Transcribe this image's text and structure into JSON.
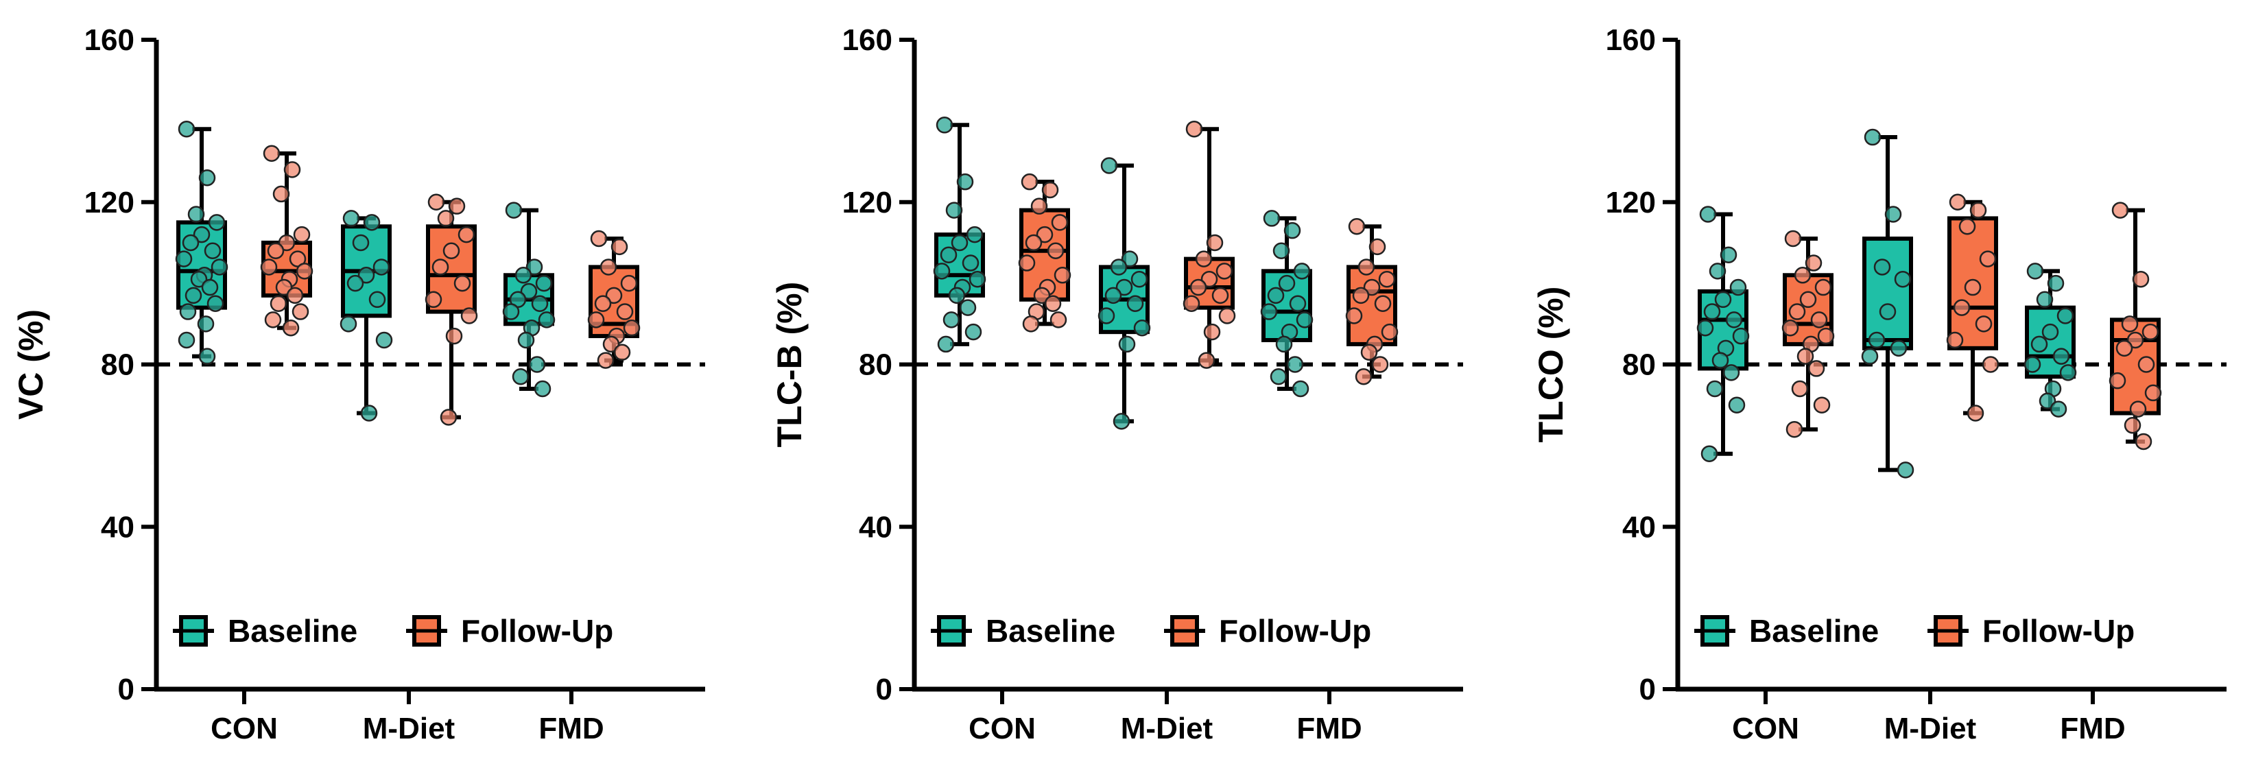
{
  "colors": {
    "baseline": "#1fbfa6",
    "followup": "#f57348",
    "baseline_dot": "#2aa594",
    "followup_dot": "#f08a70"
  },
  "chart_data": [
    {
      "type": "box",
      "ylabel": "VC (%)",
      "ylim": [
        0,
        160
      ],
      "yticks": [
        "0",
        "40",
        "80",
        "120",
        "160"
      ],
      "reference_line": 80,
      "categories": [
        "CON",
        "M-Diet",
        "FMD"
      ],
      "legend": [
        "Baseline",
        "Follow-Up"
      ],
      "series": [
        {
          "name": "Baseline",
          "boxes": [
            {
              "min": 82,
              "q1": 94,
              "median": 103,
              "q3": 115,
              "max": 138,
              "points": [
                138,
                126,
                117,
                115,
                112,
                110,
                108,
                106,
                104,
                102,
                101,
                99,
                97,
                95,
                93,
                90,
                86,
                82
              ]
            },
            {
              "min": 68,
              "q1": 92,
              "median": 103,
              "q3": 114,
              "max": 116,
              "points": [
                116,
                115,
                110,
                104,
                102,
                100,
                96,
                90,
                86,
                68
              ]
            },
            {
              "min": 74,
              "q1": 90,
              "median": 96,
              "q3": 102,
              "max": 118,
              "points": [
                118,
                104,
                102,
                100,
                98,
                96,
                95,
                93,
                91,
                89,
                86,
                80,
                77,
                74
              ]
            }
          ]
        },
        {
          "name": "Follow-Up",
          "boxes": [
            {
              "min": 89,
              "q1": 97,
              "median": 103,
              "q3": 110,
              "max": 132,
              "points": [
                132,
                128,
                122,
                112,
                110,
                108,
                106,
                104,
                103,
                101,
                99,
                97,
                95,
                93,
                91,
                89
              ]
            },
            {
              "min": 67,
              "q1": 93,
              "median": 102,
              "q3": 114,
              "max": 120,
              "points": [
                120,
                119,
                116,
                112,
                108,
                104,
                100,
                96,
                92,
                87,
                67
              ]
            },
            {
              "min": 81,
              "q1": 87,
              "median": 90,
              "q3": 104,
              "max": 111,
              "points": [
                111,
                109,
                104,
                100,
                97,
                95,
                93,
                91,
                89,
                87,
                85,
                83,
                81
              ]
            }
          ]
        }
      ]
    },
    {
      "type": "box",
      "ylabel": "TLC-B (%)",
      "ylim": [
        0,
        160
      ],
      "yticks": [
        "0",
        "40",
        "80",
        "120",
        "160"
      ],
      "reference_line": 80,
      "categories": [
        "CON",
        "M-Diet",
        "FMD"
      ],
      "legend": [
        "Baseline",
        "Follow-Up"
      ],
      "series": [
        {
          "name": "Baseline",
          "boxes": [
            {
              "min": 85,
              "q1": 97,
              "median": 102,
              "q3": 112,
              "max": 139,
              "points": [
                139,
                125,
                118,
                112,
                110,
                107,
                105,
                103,
                101,
                99,
                97,
                94,
                91,
                88,
                85
              ]
            },
            {
              "min": 66,
              "q1": 88,
              "median": 96,
              "q3": 104,
              "max": 129,
              "points": [
                129,
                106,
                104,
                101,
                99,
                97,
                95,
                92,
                89,
                85,
                66
              ]
            },
            {
              "min": 74,
              "q1": 86,
              "median": 93,
              "q3": 103,
              "max": 116,
              "points": [
                116,
                113,
                108,
                103,
                100,
                97,
                95,
                93,
                91,
                88,
                85,
                80,
                77,
                74
              ]
            }
          ]
        },
        {
          "name": "Follow-Up",
          "boxes": [
            {
              "min": 90,
              "q1": 96,
              "median": 108,
              "q3": 118,
              "max": 125,
              "points": [
                125,
                123,
                119,
                115,
                112,
                110,
                108,
                105,
                102,
                99,
                97,
                95,
                93,
                91,
                90
              ]
            },
            {
              "min": 81,
              "q1": 94,
              "median": 99,
              "q3": 106,
              "max": 138,
              "points": [
                138,
                110,
                106,
                103,
                101,
                99,
                97,
                95,
                92,
                88,
                81
              ]
            },
            {
              "min": 77,
              "q1": 85,
              "median": 98,
              "q3": 104,
              "max": 114,
              "points": [
                114,
                109,
                104,
                101,
                99,
                97,
                95,
                92,
                88,
                85,
                83,
                80,
                77
              ]
            }
          ]
        }
      ]
    },
    {
      "type": "box",
      "ylabel": "TLCO (%)",
      "ylim": [
        0,
        160
      ],
      "yticks": [
        "0",
        "40",
        "80",
        "120",
        "160"
      ],
      "reference_line": 80,
      "categories": [
        "CON",
        "M-Diet",
        "FMD"
      ],
      "legend": [
        "Baseline",
        "Follow-Up"
      ],
      "series": [
        {
          "name": "Baseline",
          "boxes": [
            {
              "min": 58,
              "q1": 79,
              "median": 91,
              "q3": 98,
              "max": 117,
              "points": [
                117,
                107,
                103,
                99,
                96,
                93,
                91,
                89,
                87,
                84,
                81,
                78,
                74,
                70,
                58
              ]
            },
            {
              "min": 54,
              "q1": 84,
              "median": 86,
              "q3": 111,
              "max": 136,
              "points": [
                136,
                117,
                104,
                101,
                93,
                86,
                84,
                82,
                54
              ]
            },
            {
              "min": 69,
              "q1": 77,
              "median": 82,
              "q3": 94,
              "max": 103,
              "points": [
                103,
                100,
                96,
                92,
                88,
                85,
                82,
                80,
                78,
                74,
                71,
                69
              ]
            }
          ]
        },
        {
          "name": "Follow-Up",
          "boxes": [
            {
              "min": 64,
              "q1": 85,
              "median": 90,
              "q3": 102,
              "max": 111,
              "points": [
                111,
                105,
                102,
                99,
                96,
                93,
                91,
                89,
                87,
                85,
                82,
                79,
                74,
                70,
                64
              ]
            },
            {
              "min": 68,
              "q1": 84,
              "median": 94,
              "q3": 116,
              "max": 120,
              "points": [
                120,
                118,
                114,
                106,
                99,
                94,
                90,
                86,
                80,
                68
              ]
            },
            {
              "min": 61,
              "q1": 68,
              "median": 86,
              "q3": 91,
              "max": 118,
              "points": [
                118,
                101,
                90,
                88,
                86,
                84,
                80,
                76,
                73,
                69,
                65,
                61
              ]
            }
          ]
        }
      ]
    }
  ]
}
